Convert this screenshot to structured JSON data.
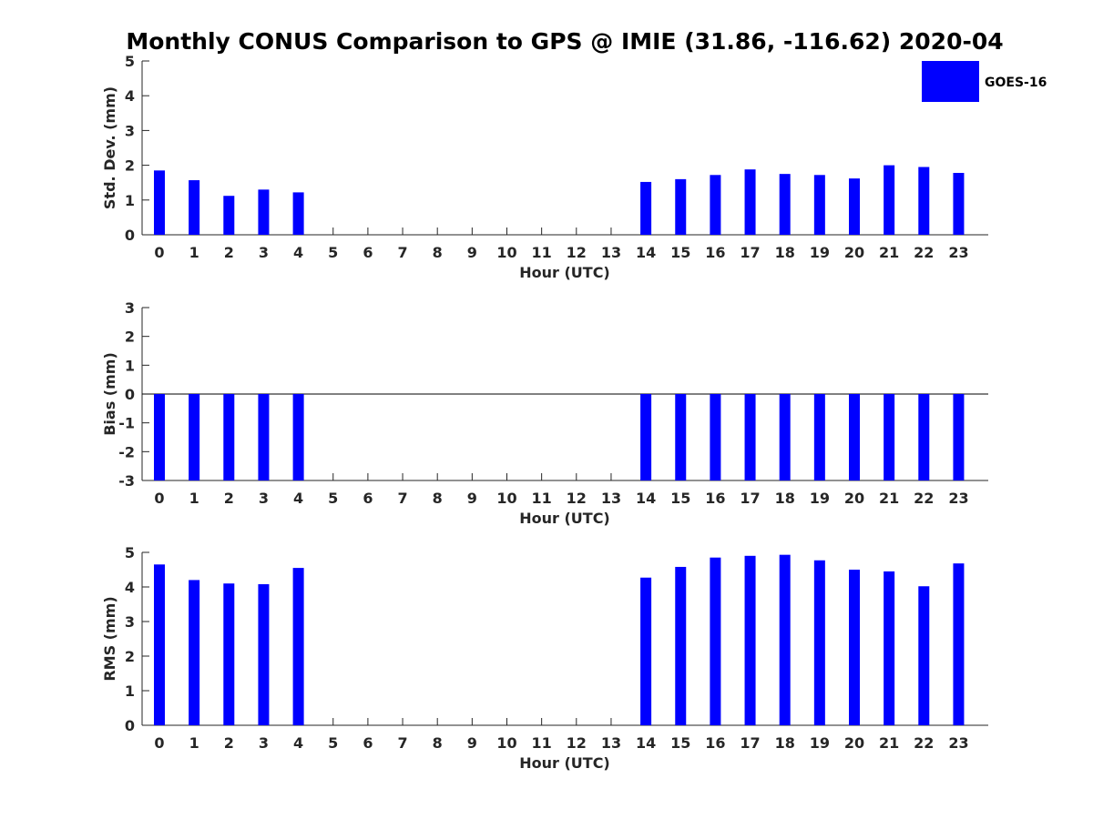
{
  "chart_data": {
    "type": "bar",
    "title": "Monthly CONUS Comparison to GPS @ IMIE (31.86, -116.62) 2020-04",
    "legend": {
      "entries": [
        "GOES-16"
      ],
      "placement": "top-right",
      "color": "#0000ff"
    },
    "bar_color": "#0000ff",
    "panels": [
      {
        "ylabel": "Std. Dev. (mm)",
        "xlabel": "Hour (UTC)",
        "ylim": [
          0,
          5
        ],
        "yticks": [
          0,
          1,
          2,
          3,
          4,
          5
        ],
        "baseline": 0,
        "categories": [
          "0",
          "1",
          "2",
          "3",
          "4",
          "5",
          "6",
          "7",
          "8",
          "9",
          "10",
          "11",
          "12",
          "13",
          "14",
          "15",
          "16",
          "17",
          "18",
          "19",
          "20",
          "21",
          "22",
          "23"
        ],
        "values": [
          1.85,
          1.57,
          1.12,
          1.3,
          1.22,
          null,
          null,
          null,
          null,
          null,
          null,
          null,
          null,
          null,
          1.52,
          1.6,
          1.72,
          1.88,
          1.75,
          1.72,
          1.62,
          2.0,
          1.95,
          1.78
        ]
      },
      {
        "ylabel": "Bias (mm)",
        "xlabel": "Hour (UTC)",
        "ylim": [
          -3,
          3
        ],
        "yticks": [
          -3,
          -2,
          -1,
          0,
          1,
          2,
          3
        ],
        "baseline": 0,
        "zero_line": true,
        "categories": [
          "0",
          "1",
          "2",
          "3",
          "4",
          "5",
          "6",
          "7",
          "8",
          "9",
          "10",
          "11",
          "12",
          "13",
          "14",
          "15",
          "16",
          "17",
          "18",
          "19",
          "20",
          "21",
          "22",
          "23"
        ],
        "values": [
          -3,
          -3,
          -3,
          -3,
          -3,
          null,
          null,
          null,
          null,
          null,
          null,
          null,
          null,
          null,
          -3,
          -3,
          -3,
          -3,
          -3,
          -3,
          -3,
          -3,
          -3,
          -3
        ]
      },
      {
        "ylabel": "RMS (mm)",
        "xlabel": "Hour (UTC)",
        "ylim": [
          0,
          5
        ],
        "yticks": [
          0,
          1,
          2,
          3,
          4,
          5
        ],
        "baseline": 0,
        "categories": [
          "0",
          "1",
          "2",
          "3",
          "4",
          "5",
          "6",
          "7",
          "8",
          "9",
          "10",
          "11",
          "12",
          "13",
          "14",
          "15",
          "16",
          "17",
          "18",
          "19",
          "20",
          "21",
          "22",
          "23"
        ],
        "values": [
          4.65,
          4.2,
          4.1,
          4.08,
          4.55,
          null,
          null,
          null,
          null,
          null,
          null,
          null,
          null,
          null,
          4.27,
          4.58,
          4.85,
          4.9,
          4.93,
          4.77,
          4.5,
          4.45,
          4.02,
          4.68
        ]
      }
    ]
  }
}
